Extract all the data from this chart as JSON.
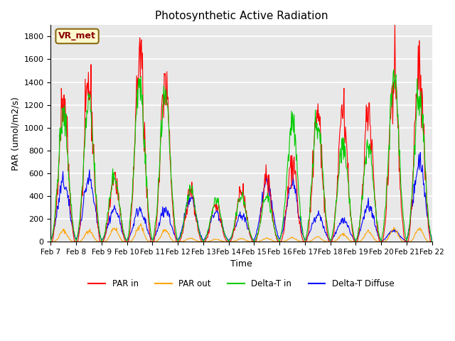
{
  "title": "Photosynthetic Active Radiation",
  "ylabel": "PAR (umol/m2/s)",
  "xlabel": "Time",
  "annotation": "VR_met",
  "ylim": [
    0,
    1900
  ],
  "yticks": [
    0,
    200,
    400,
    600,
    800,
    1000,
    1200,
    1400,
    1600,
    1800
  ],
  "xtick_labels": [
    "Feb 7",
    "Feb 8",
    "Feb 9",
    "Feb 10",
    "Feb 11",
    "Feb 12",
    "Feb 13",
    "Feb 14",
    "Feb 15",
    "Feb 16",
    "Feb 17",
    "Feb 18",
    "Feb 19",
    "Feb 20",
    "Feb 21",
    "Feb 22"
  ],
  "colors": {
    "PAR_in": "#FF0000",
    "PAR_out": "#FFA500",
    "Delta_T_in": "#00CC00",
    "Delta_T_Diffuse": "#0000FF"
  },
  "legend_labels": [
    "PAR in",
    "PAR out",
    "Delta-T in",
    "Delta-T Diffuse"
  ],
  "background_color": "#E8E8E8",
  "grid_color": "#FFFFFF",
  "n_days": 15,
  "points_per_day": 48
}
